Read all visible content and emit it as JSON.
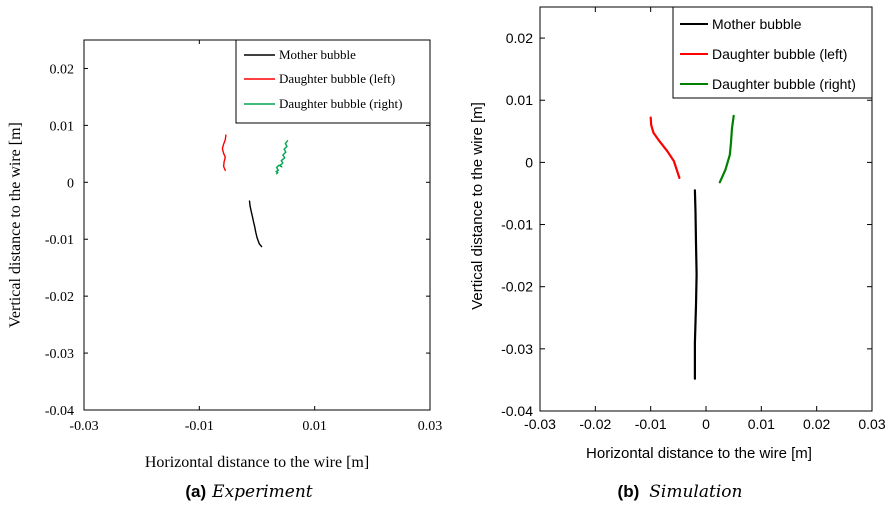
{
  "chart_data": [
    {
      "type": "line",
      "panel_label": "(a)",
      "caption": "Experiment",
      "xlabel": "Horizontal distance to the wire [m]",
      "ylabel": "Vertical distance to the wire [m]",
      "xlim": [
        -0.03,
        0.03
      ],
      "ylim": [
        -0.04,
        0.025
      ],
      "xticks": [
        -0.03,
        -0.01,
        0.01,
        0.03
      ],
      "yticks": [
        -0.04,
        -0.03,
        -0.02,
        -0.01,
        0,
        0.01,
        0.02
      ],
      "xtick_labels": [
        "-0.03",
        "-0.01",
        "0.01",
        "0.03"
      ],
      "ytick_labels": [
        "-0.04",
        "-0.03",
        "-0.02",
        "-0.01",
        "0",
        "0.01",
        "0.02"
      ],
      "legend": "top-right",
      "series": [
        {
          "name": "Mother bubble",
          "color": "#000000",
          "x": [
            -0.0013,
            -0.0012,
            -0.001,
            -0.0008,
            -0.0006,
            -0.0004,
            -0.0002,
            0.0,
            0.0002,
            0.0004,
            0.0008
          ],
          "y": [
            -0.0033,
            -0.0042,
            -0.0051,
            -0.006,
            -0.0069,
            -0.0078,
            -0.0088,
            -0.0097,
            -0.0103,
            -0.0108,
            -0.0113
          ]
        },
        {
          "name": "Daughter bubble (left)",
          "color": "#ff0000",
          "x": [
            -0.0054,
            -0.0055,
            -0.0058,
            -0.006,
            -0.0058,
            -0.0055,
            -0.0057,
            -0.0058,
            -0.0055
          ],
          "y": [
            0.0083,
            0.0075,
            0.0067,
            0.0059,
            0.0051,
            0.0044,
            0.0036,
            0.0028,
            0.0021
          ]
        },
        {
          "name": "Daughter bubble (right)",
          "color": "#00a651",
          "x": [
            0.0053,
            0.0049,
            0.0052,
            0.0047,
            0.005,
            0.0045,
            0.0048,
            0.0042,
            0.0045,
            0.004,
            0.0043,
            0.0038,
            0.0034,
            0.0037,
            0.0033,
            0.0036,
            0.0034
          ],
          "y": [
            0.0073,
            0.0068,
            0.0063,
            0.0058,
            0.0053,
            0.0048,
            0.0043,
            0.0038,
            0.0034,
            0.003,
            0.0027,
            0.003,
            0.0026,
            0.0021,
            0.0019,
            0.0017,
            0.0015
          ]
        }
      ]
    },
    {
      "type": "line",
      "panel_label": "(b)",
      "caption": "Simulation",
      "xlabel": "Horizontal distance to the wire [m]",
      "ylabel": "Vertical distance to the wire [m]",
      "xlim": [
        -0.03,
        0.03
      ],
      "ylim": [
        -0.04,
        0.025
      ],
      "xticks": [
        -0.03,
        -0.02,
        -0.01,
        0,
        0.01,
        0.02,
        0.03
      ],
      "yticks": [
        -0.04,
        -0.03,
        -0.02,
        -0.01,
        0,
        0.01,
        0.02
      ],
      "xtick_labels": [
        "-0.03",
        "-0.02",
        "-0.01",
        "0",
        "0.01",
        "0.02",
        "0.03"
      ],
      "ytick_labels": [
        "-0.04",
        "-0.03",
        "-0.02",
        "-0.01",
        "0",
        "0.01",
        "0.02"
      ],
      "legend": "top-right",
      "series": [
        {
          "name": "Mother bubble",
          "color": "#000000",
          "x": [
            -0.002,
            -0.0019,
            -0.0018,
            -0.0017,
            -0.0018,
            -0.002,
            -0.002
          ],
          "y": [
            -0.0045,
            -0.008,
            -0.013,
            -0.018,
            -0.023,
            -0.029,
            -0.0348
          ]
        },
        {
          "name": "Daughter bubble (left)",
          "color": "#ff0000",
          "x": [
            -0.01,
            -0.0099,
            -0.0095,
            -0.0085,
            -0.007,
            -0.0058,
            -0.0048
          ],
          "y": [
            0.0072,
            0.006,
            0.0048,
            0.0035,
            0.0018,
            0.0002,
            -0.0025
          ]
        },
        {
          "name": "Daughter bubble (right)",
          "color": "#008000",
          "x": [
            0.005,
            0.0047,
            0.0045,
            0.0043,
            0.0035,
            0.0025
          ],
          "y": [
            0.0075,
            0.0055,
            0.003,
            0.0012,
            -0.0012,
            -0.0032
          ]
        }
      ]
    }
  ]
}
